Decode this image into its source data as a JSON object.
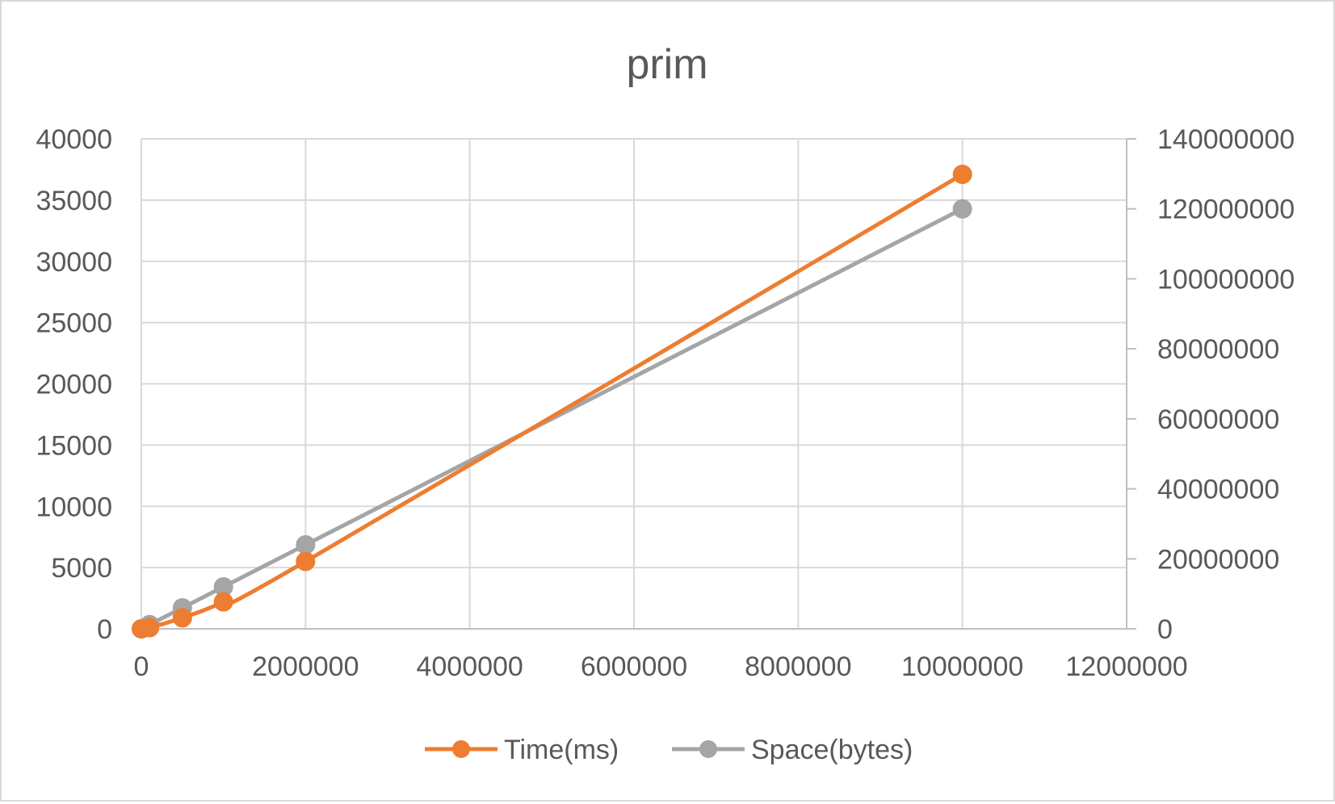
{
  "chart_data": {
    "type": "scatter",
    "title": "prim",
    "xlabel": "",
    "ylabel": "",
    "y2label": "",
    "xlim": [
      0,
      12000000
    ],
    "ylim": [
      0,
      40000
    ],
    "y2lim": [
      0,
      140000000
    ],
    "x_ticks": [
      "0",
      "2000000",
      "4000000",
      "6000000",
      "8000000",
      "10000000",
      "12000000"
    ],
    "y_ticks": [
      "0",
      "5000",
      "10000",
      "15000",
      "20000",
      "25000",
      "30000",
      "35000",
      "40000"
    ],
    "y2_ticks": [
      "0",
      "20000000",
      "40000000",
      "60000000",
      "80000000",
      "100000000",
      "120000000",
      "140000000"
    ],
    "grid": true,
    "legend_position": "bottom",
    "smooth_lines": true,
    "series": [
      {
        "name": "Time(ms)",
        "axis": "left",
        "color": "#ED7D31",
        "x": [
          0,
          100000,
          500000,
          1000000,
          2000000,
          10000000
        ],
        "y": [
          0,
          100,
          900,
          2200,
          5500,
          37100
        ]
      },
      {
        "name": "Space(bytes)",
        "axis": "right",
        "color": "#A5A5A5",
        "x": [
          0,
          100000,
          500000,
          1000000,
          2000000,
          10000000
        ],
        "y": [
          0,
          1200000,
          6000000,
          12000000,
          24000000,
          120000000
        ]
      }
    ]
  }
}
